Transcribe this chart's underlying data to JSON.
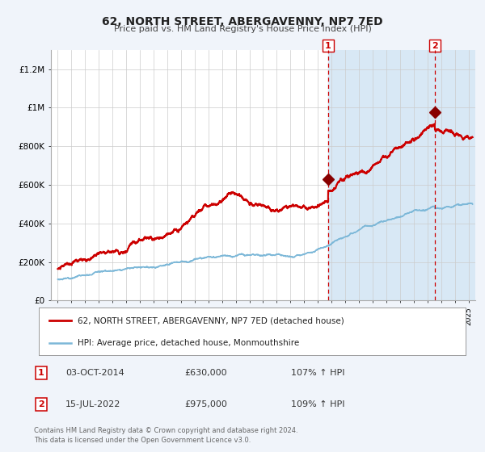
{
  "title": "62, NORTH STREET, ABERGAVENNY, NP7 7ED",
  "subtitle": "Price paid vs. HM Land Registry's House Price Index (HPI)",
  "footnote": "Contains HM Land Registry data © Crown copyright and database right 2024.\nThis data is licensed under the Open Government Licence v3.0.",
  "legend": [
    {
      "label": "62, NORTH STREET, ABERGAVENNY, NP7 7ED (detached house)",
      "color": "#cc0000",
      "lw": 1.5
    },
    {
      "label": "HPI: Average price, detached house, Monmouthshire",
      "color": "#7db8d8",
      "lw": 1.2
    }
  ],
  "transactions": [
    {
      "n": "1",
      "date": "03-OCT-2014",
      "price": "£630,000",
      "pct": "107% ↑ HPI"
    },
    {
      "n": "2",
      "date": "15-JUL-2022",
      "price": "£975,000",
      "pct": "109% ↑ HPI"
    }
  ],
  "vline1_x": 2014.75,
  "vline2_x": 2022.54,
  "marker1_x": 2014.75,
  "marker1_y": 630000,
  "marker2_x": 2022.54,
  "marker2_y": 975000,
  "shade_start": 2014.75,
  "shade_end": 2025.5,
  "ylim": [
    0,
    1300000
  ],
  "xlim": [
    1994.5,
    2025.5
  ],
  "bg_color": "#f0f4fa",
  "plot_bg": "#ffffff",
  "grid_color": "#cccccc",
  "shade_color": "#d8e8f5"
}
